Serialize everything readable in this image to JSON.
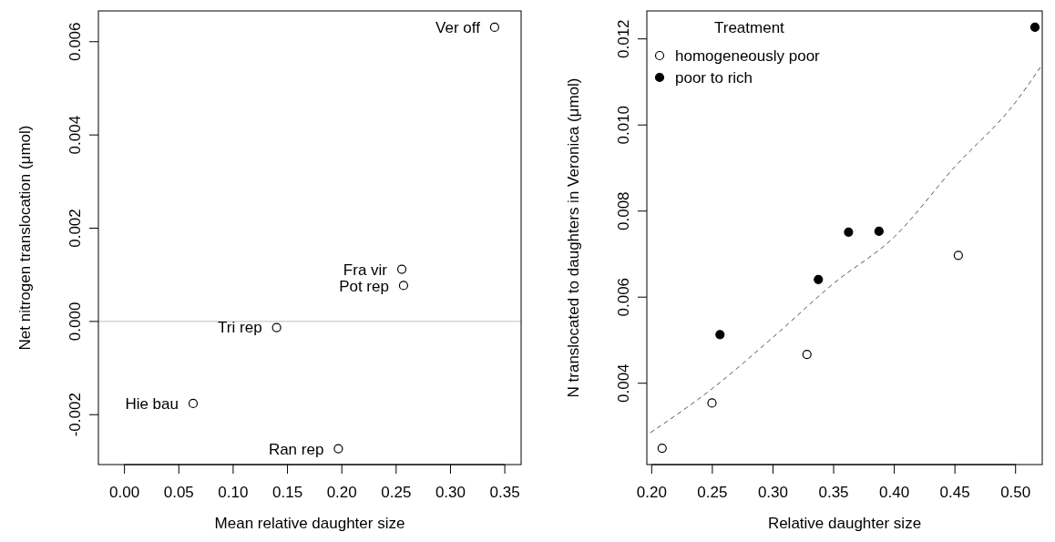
{
  "chart_data": [
    {
      "type": "scatter",
      "xlabel": "Mean relative daughter size",
      "ylabel": "Net nitrogen translocation (μmol)",
      "marker": "circle",
      "grid": false,
      "legend": false,
      "xlim": [
        -0.024,
        0.365
      ],
      "ylim": [
        -0.00307,
        0.00666
      ],
      "xticks": [
        {
          "value": 0,
          "label": "0.00"
        },
        {
          "value": 0.05,
          "label": "0.05"
        },
        {
          "value": 0.1,
          "label": "0.10"
        },
        {
          "value": 0.15,
          "label": "0.15"
        },
        {
          "value": 0.2,
          "label": "0.20"
        },
        {
          "value": 0.25,
          "label": "0.25"
        },
        {
          "value": 0.3,
          "label": "0.30"
        },
        {
          "value": 0.35,
          "label": "0.35"
        }
      ],
      "yticks": [
        {
          "value": -0.002,
          "label": "-0.002"
        },
        {
          "value": 0,
          "label": "0.000"
        },
        {
          "value": 0.002,
          "label": "0.002"
        },
        {
          "value": 0.004,
          "label": "0.004"
        },
        {
          "value": 0.006,
          "label": "0.006"
        }
      ],
      "ref_lines": [
        {
          "axis": "y",
          "value": 0,
          "color": "#bebebe"
        }
      ],
      "series": [
        {
          "color": "#ffffff",
          "x": [
            0.3406,
            0.2552,
            0.2568,
            0.14,
            0.0632,
            0.1968
          ],
          "values": [
            0.00631,
            0.00112,
            0.00077,
            -0.00013,
            -0.00176,
            -0.00273
          ]
        }
      ],
      "annotations": [
        {
          "text": "Ver off",
          "x": 0.3406,
          "y": 0.00631
        },
        {
          "text": "Fra vir",
          "x": 0.2552,
          "y": 0.00112
        },
        {
          "text": "Pot rep",
          "x": 0.2568,
          "y": 0.000766
        },
        {
          "text": "Tri rep",
          "x": 0.14,
          "y": -0.000128
        },
        {
          "text": "Hie bau",
          "x": 0.0632,
          "y": -0.00176
        },
        {
          "text": "Ran rep",
          "x": 0.1968,
          "y": -0.00273
        }
      ]
    },
    {
      "type": "scatter",
      "xlabel": "Relative daughter size",
      "ylabel": "N translocated to daughters in Veronica (μmol)",
      "marker": "circle",
      "grid": false,
      "legend": "top left",
      "legend_title": "Treatment",
      "xlim": [
        0.196,
        0.522
      ],
      "ylim": [
        0.00211,
        0.01265
      ],
      "xticks": [
        {
          "value": 0.2,
          "label": "0.20"
        },
        {
          "value": 0.25,
          "label": "0.25"
        },
        {
          "value": 0.3,
          "label": "0.30"
        },
        {
          "value": 0.35,
          "label": "0.35"
        },
        {
          "value": 0.4,
          "label": "0.40"
        },
        {
          "value": 0.45,
          "label": "0.45"
        },
        {
          "value": 0.5,
          "label": "0.50"
        }
      ],
      "yticks": [
        {
          "value": 0.004,
          "label": "0.004"
        },
        {
          "value": 0.006,
          "label": "0.006"
        },
        {
          "value": 0.008,
          "label": "0.008"
        },
        {
          "value": 0.01,
          "label": "0.010"
        },
        {
          "value": 0.012,
          "label": "0.012"
        }
      ],
      "series": [
        {
          "name": "homogeneously poor",
          "color": "#ffffff",
          "x": [
            0.2086,
            0.2497,
            0.328,
            0.4528
          ],
          "values": [
            0.00249,
            0.00354,
            0.00467,
            0.00697
          ]
        },
        {
          "name": "poor to rich",
          "color": "#000000",
          "x": [
            0.2563,
            0.3374,
            0.3623,
            0.3874,
            0.516
          ],
          "values": [
            0.00513,
            0.00641,
            0.00751,
            0.00753,
            0.01227
          ]
        },
        {
          "type": "line",
          "color": "#555555",
          "line_style": "dashed",
          "marker": "none",
          "x": [
            0.1989,
            0.2497,
            0.2993,
            0.3496,
            0.4,
            0.45,
            0.5,
            0.5204
          ],
          "values": [
            0.00285,
            0.00387,
            0.00505,
            0.00631,
            0.0074,
            0.00903,
            0.01053,
            0.01134
          ]
        }
      ]
    }
  ]
}
